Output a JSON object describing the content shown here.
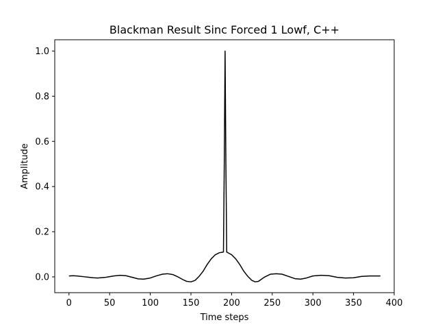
{
  "chart_data": {
    "type": "line",
    "title": "Blackman Result Sinc Forced 1 Lowf, C++",
    "xlabel": "Time steps",
    "ylabel": "Amplitude",
    "xlim": [
      -17.5,
      400
    ],
    "ylim": [
      -0.07,
      1.05
    ],
    "xticks": [
      0,
      50,
      100,
      150,
      200,
      250,
      300,
      350,
      400
    ],
    "xtick_labels": [
      "0",
      "50",
      "100",
      "150",
      "200",
      "250",
      "300",
      "350",
      "400"
    ],
    "yticks": [
      0.0,
      0.2,
      0.4,
      0.6,
      0.8,
      1.0
    ],
    "ytick_labels": [
      "0.0",
      "0.2",
      "0.4",
      "0.6",
      "0.8",
      "1.0"
    ],
    "grid": false,
    "line_color": "#000000",
    "series": [
      {
        "x": [
          0,
          5,
          10,
          20,
          30,
          35,
          45,
          55,
          63,
          70,
          80,
          85,
          92,
          100,
          108,
          115,
          121,
          128,
          135,
          140,
          145,
          150,
          155,
          160,
          165,
          170,
          175,
          180,
          185,
          190,
          191,
          192,
          193,
          194,
          195,
          200,
          205,
          210,
          215,
          220,
          225,
          229,
          233,
          240,
          248,
          255,
          262,
          270,
          278,
          285,
          292,
          300,
          310,
          320,
          330,
          340,
          350,
          360,
          370,
          383
        ],
        "y": [
          0.004,
          0.005,
          0.004,
          0.0,
          -0.004,
          -0.005,
          -0.002,
          0.004,
          0.007,
          0.005,
          -0.004,
          -0.009,
          -0.01,
          -0.005,
          0.005,
          0.012,
          0.014,
          0.01,
          -0.002,
          -0.012,
          -0.02,
          -0.022,
          -0.016,
          0.002,
          0.025,
          0.055,
          0.08,
          0.098,
          0.107,
          0.11,
          0.5,
          1.0,
          0.5,
          0.11,
          0.108,
          0.098,
          0.08,
          0.055,
          0.025,
          0.002,
          -0.016,
          -0.022,
          -0.02,
          -0.002,
          0.012,
          0.014,
          0.012,
          0.002,
          -0.008,
          -0.01,
          -0.005,
          0.004,
          0.007,
          0.005,
          -0.002,
          -0.005,
          -0.004,
          0.002,
          0.004,
          0.004
        ]
      }
    ]
  }
}
